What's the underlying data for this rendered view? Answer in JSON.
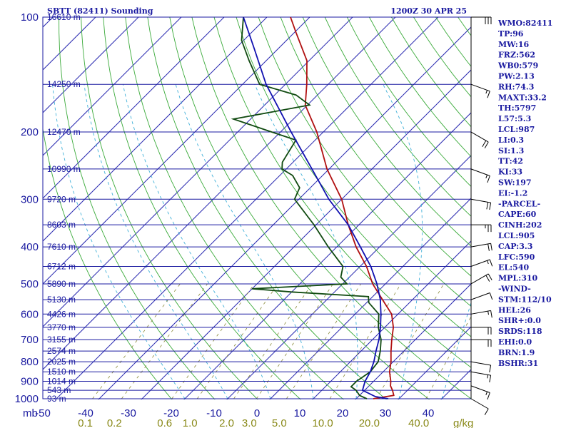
{
  "header": {
    "station": "SBTT (82411) Sounding",
    "time": "1200Z 30 APR 25"
  },
  "indices": [
    "WMO:82411",
    "TP:96",
    "MW:16",
    "FRZ:562",
    "WB0:579",
    "PW:2.13",
    "RH:74.3",
    "MAXT:33.2",
    "TH:5797",
    "L57:5.3",
    "LCL:987",
    "LI:0.3",
    "SI:1.3",
    "TT:42",
    "KI:33",
    "SW:197",
    "EI:-1.2",
    "-PARCEL-",
    "CAPE:60",
    "CINH:202",
    "LCL:905",
    "CAP:3.3",
    "LFC:590",
    "EL:540",
    "MPL:310",
    "-WIND-",
    "STM:112/10",
    "HEL:26",
    "SHR+:0.0",
    "SRDS:118",
    "EHI:0.0",
    "BRN:1.9",
    "BSHR:31"
  ],
  "chart_data": {
    "type": "line",
    "chart_kind": "skew-T log-P diagram",
    "y_axis": {
      "label": "mb",
      "scale": "log",
      "ticks": [
        100,
        200,
        300,
        400,
        500,
        600,
        700,
        800,
        900,
        1000
      ],
      "range": [
        1000,
        100
      ]
    },
    "x_axis": {
      "label": "",
      "ticks": [
        -50,
        -40,
        -30,
        -20,
        -10,
        0,
        10,
        20,
        30,
        40
      ],
      "skew": "45 degrees"
    },
    "mixing_ratio_axis": {
      "unit": "g/kg",
      "ticks": [
        "0.1",
        "0.2",
        "0.6",
        "1.0",
        "2.0",
        "3.0",
        "5.0",
        "10.0",
        "20.0",
        "40.0"
      ]
    },
    "height_labels": [
      {
        "p": 100,
        "label": "16610 m"
      },
      {
        "p": 150,
        "label": "14250 m"
      },
      {
        "p": 200,
        "label": "12470 m"
      },
      {
        "p": 250,
        "label": "10990 m"
      },
      {
        "p": 300,
        "label": "9720 m"
      },
      {
        "p": 350,
        "label": "8603 m"
      },
      {
        "p": 400,
        "label": "7610 m"
      },
      {
        "p": 450,
        "label": "6712 m"
      },
      {
        "p": 500,
        "label": "5890 m"
      },
      {
        "p": 550,
        "label": "5130 m"
      },
      {
        "p": 600,
        "label": "4426 m"
      },
      {
        "p": 650,
        "label": "3770 m"
      },
      {
        "p": 700,
        "label": "3155 m"
      },
      {
        "p": 750,
        "label": "2574 m"
      },
      {
        "p": 800,
        "label": "2025 m"
      },
      {
        "p": 850,
        "label": "1510 m"
      },
      {
        "p": 900,
        "label": "1014 m"
      },
      {
        "p": 950,
        "label": "543 m"
      },
      {
        "p": 1000,
        "label": "93 m"
      }
    ],
    "series": [
      {
        "color": "#b01010",
        "points": [
          [
            1000,
            24.0
          ],
          [
            980,
            28.0
          ],
          [
            950,
            26.5
          ],
          [
            925,
            25.0
          ],
          [
            900,
            24.0
          ],
          [
            850,
            21.5
          ],
          [
            800,
            19.5
          ],
          [
            750,
            17.0
          ],
          [
            700,
            14.5
          ],
          [
            650,
            12.0
          ],
          [
            600,
            8.5
          ],
          [
            550,
            3.0
          ],
          [
            500,
            -3.0
          ],
          [
            450,
            -8.5
          ],
          [
            400,
            -15.5
          ],
          [
            350,
            -22.5
          ],
          [
            300,
            -30.0
          ],
          [
            250,
            -40.5
          ],
          [
            200,
            -51.5
          ],
          [
            170,
            -60.5
          ],
          [
            150,
            -65.0
          ],
          [
            130,
            -70.5
          ],
          [
            110,
            -79.5
          ],
          [
            100,
            -84.5
          ]
        ]
      },
      {
        "color": "#104a10",
        "points": [
          [
            1000,
            22.5
          ],
          [
            980,
            20.0
          ],
          [
            950,
            18.0
          ],
          [
            930,
            16.0
          ],
          [
            900,
            16.0
          ],
          [
            850,
            17.0
          ],
          [
            800,
            16.5
          ],
          [
            750,
            14.5
          ],
          [
            700,
            12.0
          ],
          [
            650,
            8.5
          ],
          [
            600,
            5.5
          ],
          [
            560,
            0.5
          ],
          [
            540,
            -1.0
          ],
          [
            525,
            -20.0
          ],
          [
            515,
            -30.0
          ],
          [
            500,
            -9.0
          ],
          [
            480,
            -12.0
          ],
          [
            450,
            -14.0
          ],
          [
            400,
            -22.0
          ],
          [
            350,
            -30.5
          ],
          [
            300,
            -41.0
          ],
          [
            280,
            -42.5
          ],
          [
            260,
            -47.0
          ],
          [
            250,
            -51.0
          ],
          [
            240,
            -52.5
          ],
          [
            210,
            -54.5
          ],
          [
            200,
            -62.0
          ],
          [
            185,
            -74.0
          ],
          [
            170,
            -59.5
          ],
          [
            160,
            -65.0
          ],
          [
            150,
            -76.0
          ],
          [
            130,
            -84.0
          ],
          [
            115,
            -90.5
          ],
          [
            100,
            -95.5
          ]
        ]
      },
      {
        "color": "#1010b0",
        "points": [
          [
            1000,
            27.5
          ],
          [
            987,
            24.0
          ],
          [
            950,
            19.5
          ],
          [
            900,
            18.0
          ],
          [
            850,
            17.0
          ],
          [
            800,
            15.5
          ],
          [
            750,
            13.5
          ],
          [
            700,
            11.5
          ],
          [
            650,
            9.0
          ],
          [
            600,
            6.0
          ],
          [
            550,
            2.5
          ],
          [
            500,
            -2.0
          ],
          [
            450,
            -7.5
          ],
          [
            400,
            -14.5
          ],
          [
            350,
            -22.5
          ],
          [
            300,
            -33.0
          ],
          [
            250,
            -44.0
          ],
          [
            200,
            -57.5
          ],
          [
            150,
            -74.5
          ],
          [
            120,
            -86.0
          ],
          [
            100,
            -95.5
          ]
        ]
      }
    ],
    "wind_barbs": [
      {
        "p": 1000,
        "dir": 120,
        "spd": 10
      },
      {
        "p": 925,
        "dir": 110,
        "spd": 15
      },
      {
        "p": 850,
        "dir": 100,
        "spd": 15
      },
      {
        "p": 800,
        "dir": 100,
        "spd": 10
      },
      {
        "p": 700,
        "dir": 90,
        "spd": 20
      },
      {
        "p": 650,
        "dir": 90,
        "spd": 20
      },
      {
        "p": 600,
        "dir": 80,
        "spd": 15
      },
      {
        "p": 550,
        "dir": 70,
        "spd": 10
      },
      {
        "p": 500,
        "dir": 60,
        "spd": 20
      },
      {
        "p": 450,
        "dir": 70,
        "spd": 15
      },
      {
        "p": 400,
        "dir": 80,
        "spd": 20
      },
      {
        "p": 350,
        "dir": 90,
        "spd": 25
      },
      {
        "p": 300,
        "dir": 100,
        "spd": 20
      },
      {
        "p": 250,
        "dir": 110,
        "spd": 15
      },
      {
        "p": 200,
        "dir": 120,
        "spd": 20
      },
      {
        "p": 150,
        "dir": 110,
        "spd": 15
      },
      {
        "p": 100,
        "dir": 90,
        "spd": 30
      }
    ]
  }
}
